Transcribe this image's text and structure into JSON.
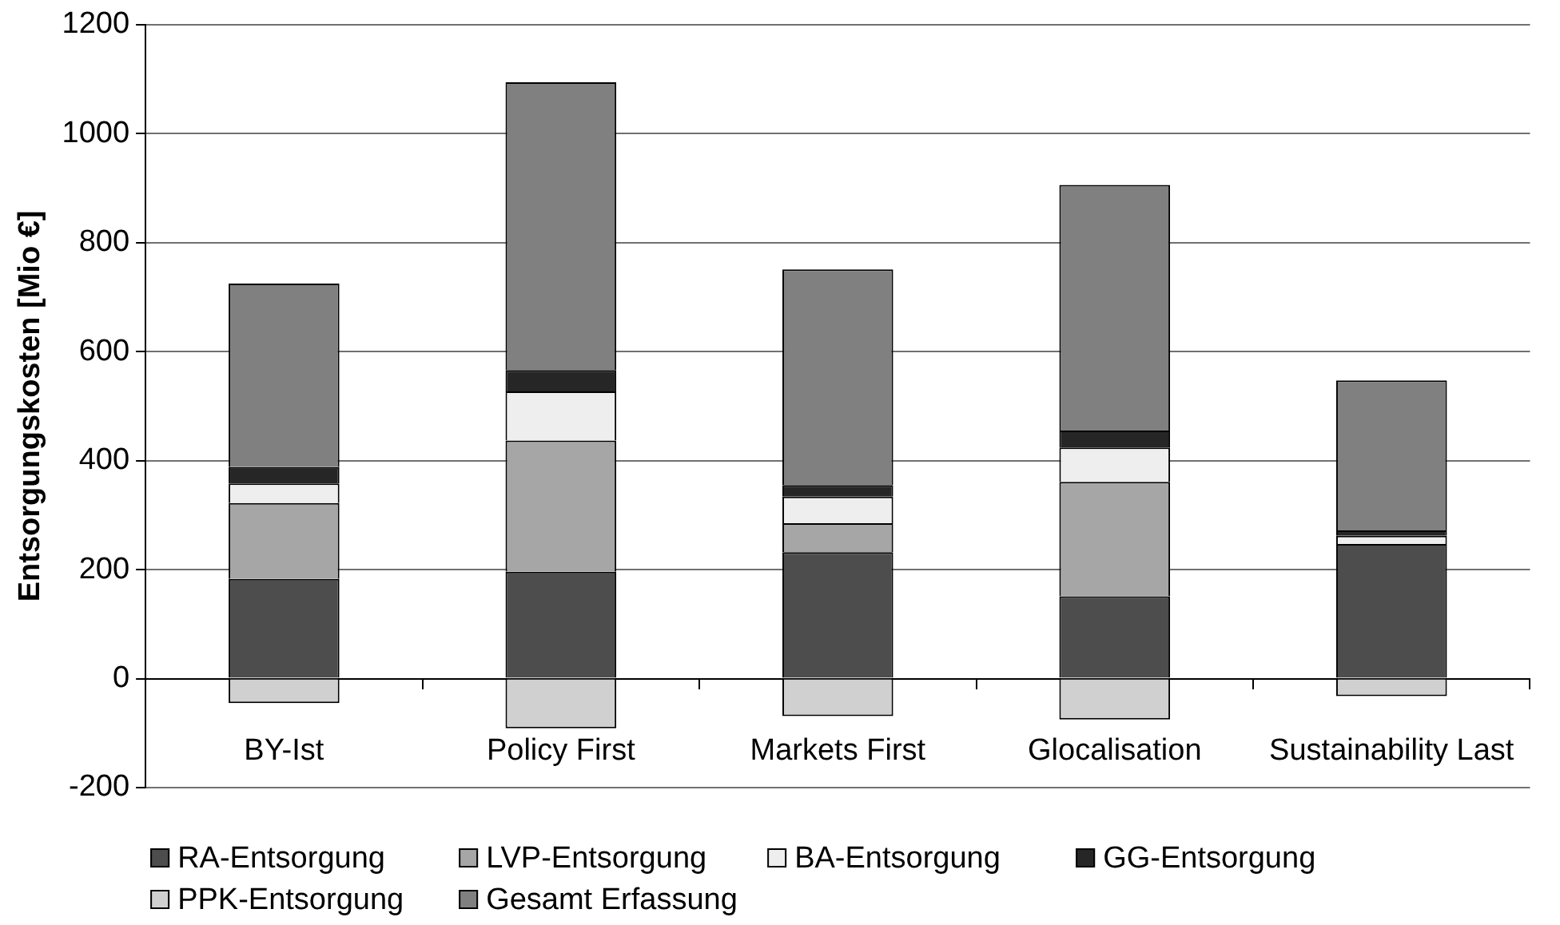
{
  "chart_data": {
    "type": "bar",
    "ylabel": "Entsorgungskosten [Mio €]",
    "categories": [
      "BY-Ist",
      "Policy First",
      "Markets First",
      "Glocalisation",
      "Sustainability Last"
    ],
    "series": [
      {
        "name": "RA-Entsorgung",
        "color": "#4d4d4d",
        "values": [
          183,
          196,
          232,
          151,
          247
        ]
      },
      {
        "name": "LVP-Entsorgung",
        "color": "#a6a6a6",
        "values": [
          139,
          241,
          53,
          210,
          0
        ]
      },
      {
        "name": "BA-Entsorgung",
        "color": "#eeeeee",
        "values": [
          36,
          90,
          49,
          63,
          15
        ]
      },
      {
        "name": "GG-Entsorgung",
        "color": "#262626",
        "values": [
          30,
          39,
          21,
          31,
          10
        ]
      },
      {
        "name": "PPK-Entsorgung",
        "color": "#d0d0d0",
        "values": [
          -45,
          -91,
          -69,
          -75,
          -32
        ]
      },
      {
        "name": "Gesamt Erfassung",
        "color": "#808080",
        "values": [
          337,
          528,
          396,
          451,
          275
        ]
      }
    ],
    "stacked": true,
    "ylim": [
      -200,
      1200
    ],
    "yticks": [
      -200,
      0,
      200,
      400,
      600,
      800,
      1000,
      1200
    ],
    "grid": "y",
    "legend": "bottom"
  }
}
